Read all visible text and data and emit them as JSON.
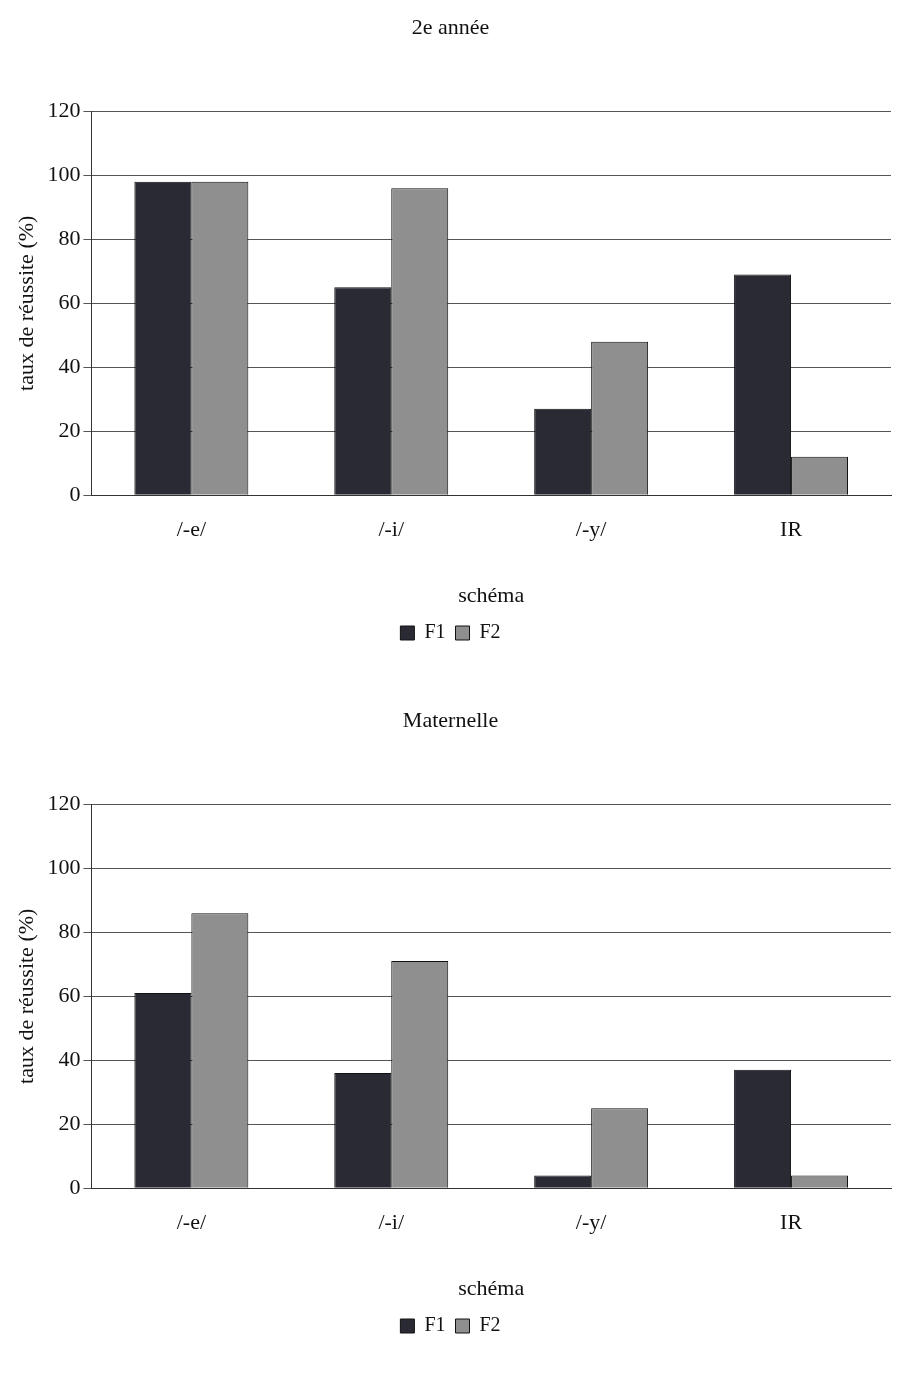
{
  "chart_data": [
    {
      "type": "bar",
      "title": "2e année",
      "xlabel": "schéma",
      "ylabel": "taux de réussite (%)",
      "categories": [
        "/-e/",
        "/-i/",
        "/-y/",
        "IR"
      ],
      "series": [
        {
          "name": "F1",
          "color": "#2a2a35",
          "values": [
            98,
            65,
            27,
            69
          ]
        },
        {
          "name": "F2",
          "color": "#8f8f8f",
          "values": [
            98,
            96,
            48,
            12
          ]
        }
      ],
      "ylim": [
        0,
        120
      ],
      "yticks": [
        0,
        20,
        40,
        60,
        80,
        100,
        120
      ],
      "grid": "y",
      "legend": "bottom"
    },
    {
      "type": "bar",
      "title": "Maternelle",
      "xlabel": "schéma",
      "ylabel": "taux de réussite (%)",
      "categories": [
        "/-e/",
        "/-i/",
        "/-y/",
        "IR"
      ],
      "series": [
        {
          "name": "F1",
          "color": "#2a2a35",
          "values": [
            61,
            36,
            4,
            37
          ]
        },
        {
          "name": "F2",
          "color": "#8f8f8f",
          "values": [
            86,
            71,
            25,
            4
          ]
        }
      ],
      "ylim": [
        0,
        120
      ],
      "yticks": [
        0,
        20,
        40,
        60,
        80,
        100,
        120
      ],
      "grid": "y",
      "legend": "bottom"
    }
  ]
}
